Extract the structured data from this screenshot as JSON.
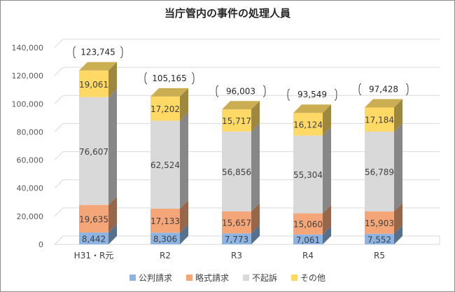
{
  "chart_data": {
    "type": "bar",
    "stacked": true,
    "three_d": true,
    "title": "当庁管内の事件の処理人員",
    "categories": [
      "H31・R元",
      "R2",
      "R3",
      "R4",
      "R5"
    ],
    "series": [
      {
        "name": "公判請求",
        "values": [
          8442,
          8306,
          7773,
          7061,
          7552
        ],
        "labels": [
          "8,442",
          "8,306",
          "7,773",
          "7,061",
          "7,552"
        ],
        "color": "#8db4e2"
      },
      {
        "name": "略式請求",
        "values": [
          19635,
          17133,
          15657,
          15060,
          15903
        ],
        "labels": [
          "19,635",
          "17,133",
          "15,657",
          "15,060",
          "15,903"
        ],
        "color": "#f4a679"
      },
      {
        "name": "不起訴",
        "values": [
          76607,
          62524,
          56856,
          55304,
          56789
        ],
        "labels": [
          "76,607",
          "62,524",
          "56,856",
          "55,304",
          "56,789"
        ],
        "color": "#d9d9d9"
      },
      {
        "name": "その他",
        "values": [
          19061,
          17202,
          15717,
          16124,
          17184
        ],
        "labels": [
          "19,061",
          "17,202",
          "15,717",
          "16,124",
          "17,184"
        ],
        "color": "#ffd966"
      }
    ],
    "totals": [
      "123,745",
      "105,165",
      "96,003",
      "93,549",
      "97,428"
    ],
    "ylim": [
      0,
      140000
    ],
    "yticks": [
      "0",
      "20,000",
      "40,000",
      "60,000",
      "80,000",
      "100,000",
      "120,000",
      "140,000"
    ],
    "grid": true,
    "legend_position": "bottom"
  }
}
